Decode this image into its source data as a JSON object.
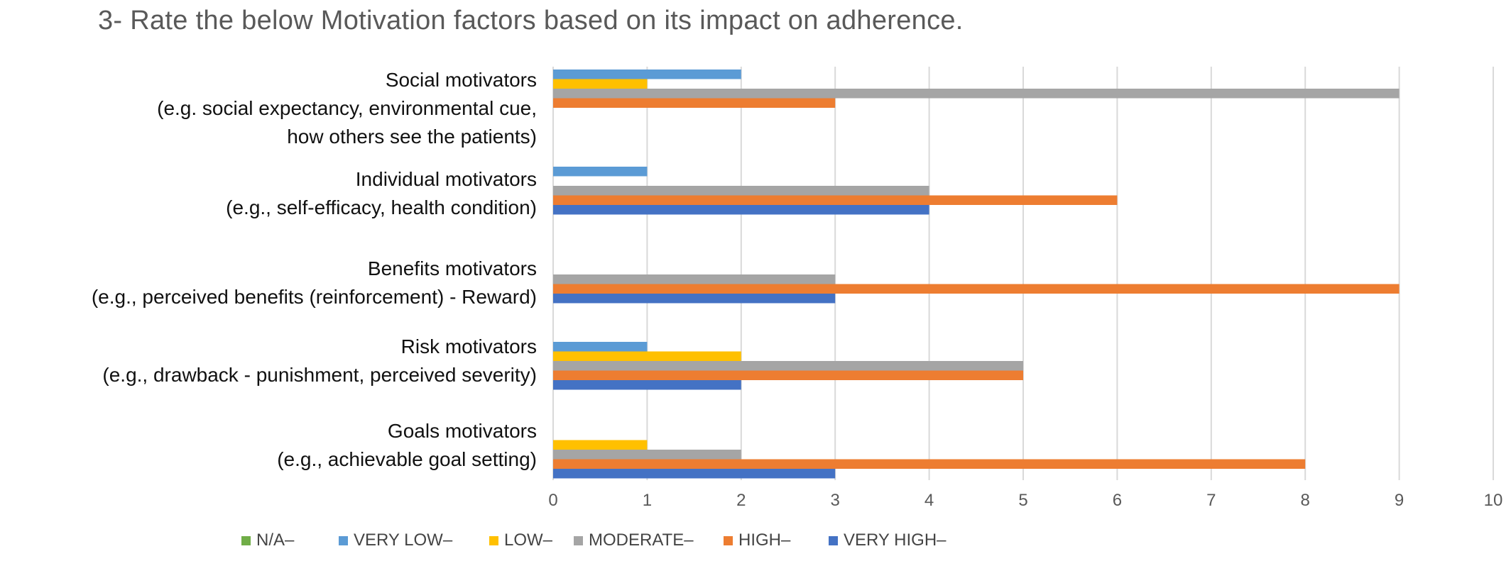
{
  "title": "3- Rate the below Motivation factors based on its impact on adherence.",
  "chart_data": {
    "type": "bar",
    "orientation": "horizontal",
    "categories": [
      {
        "lines": [
          "Social motivators",
          "(e.g. social expectancy, environmental cue,",
          "how others see the patients)"
        ]
      },
      {
        "lines": [
          "Individual motivators",
          "(e.g., self-efficacy, health condition)"
        ]
      },
      {
        "lines": [
          "Benefits motivators",
          "(e.g., perceived benefits (reinforcement) - Reward)"
        ]
      },
      {
        "lines": [
          "Risk motivators",
          "(e.g., drawback - punishment, perceived severity)"
        ]
      },
      {
        "lines": [
          "Goals motivators",
          "(e.g., achievable goal setting)"
        ]
      }
    ],
    "series": [
      {
        "name": "N/A–",
        "color": "#70AD47",
        "values": [
          0,
          0,
          0,
          0,
          0
        ]
      },
      {
        "name": "VERY LOW–",
        "color": "#5B9BD5",
        "values": [
          2,
          1,
          0,
          1,
          0
        ]
      },
      {
        "name": "LOW–",
        "color": "#FFC000",
        "values": [
          1,
          0,
          0,
          2,
          1
        ]
      },
      {
        "name": "MODERATE–",
        "color": "#A5A5A5",
        "values": [
          9,
          4,
          3,
          5,
          2
        ]
      },
      {
        "name": "HIGH–",
        "color": "#ED7D31",
        "values": [
          3,
          6,
          9,
          5,
          8
        ]
      },
      {
        "name": "VERY HIGH–",
        "color": "#4472C4",
        "values": [
          0,
          4,
          3,
          2,
          3
        ]
      }
    ],
    "xlim": [
      0,
      10
    ],
    "xticks": [
      "0",
      "1",
      "2",
      "3",
      "4",
      "5",
      "6",
      "7",
      "8",
      "9",
      "10"
    ],
    "grid": true,
    "legend_position": "bottom"
  }
}
